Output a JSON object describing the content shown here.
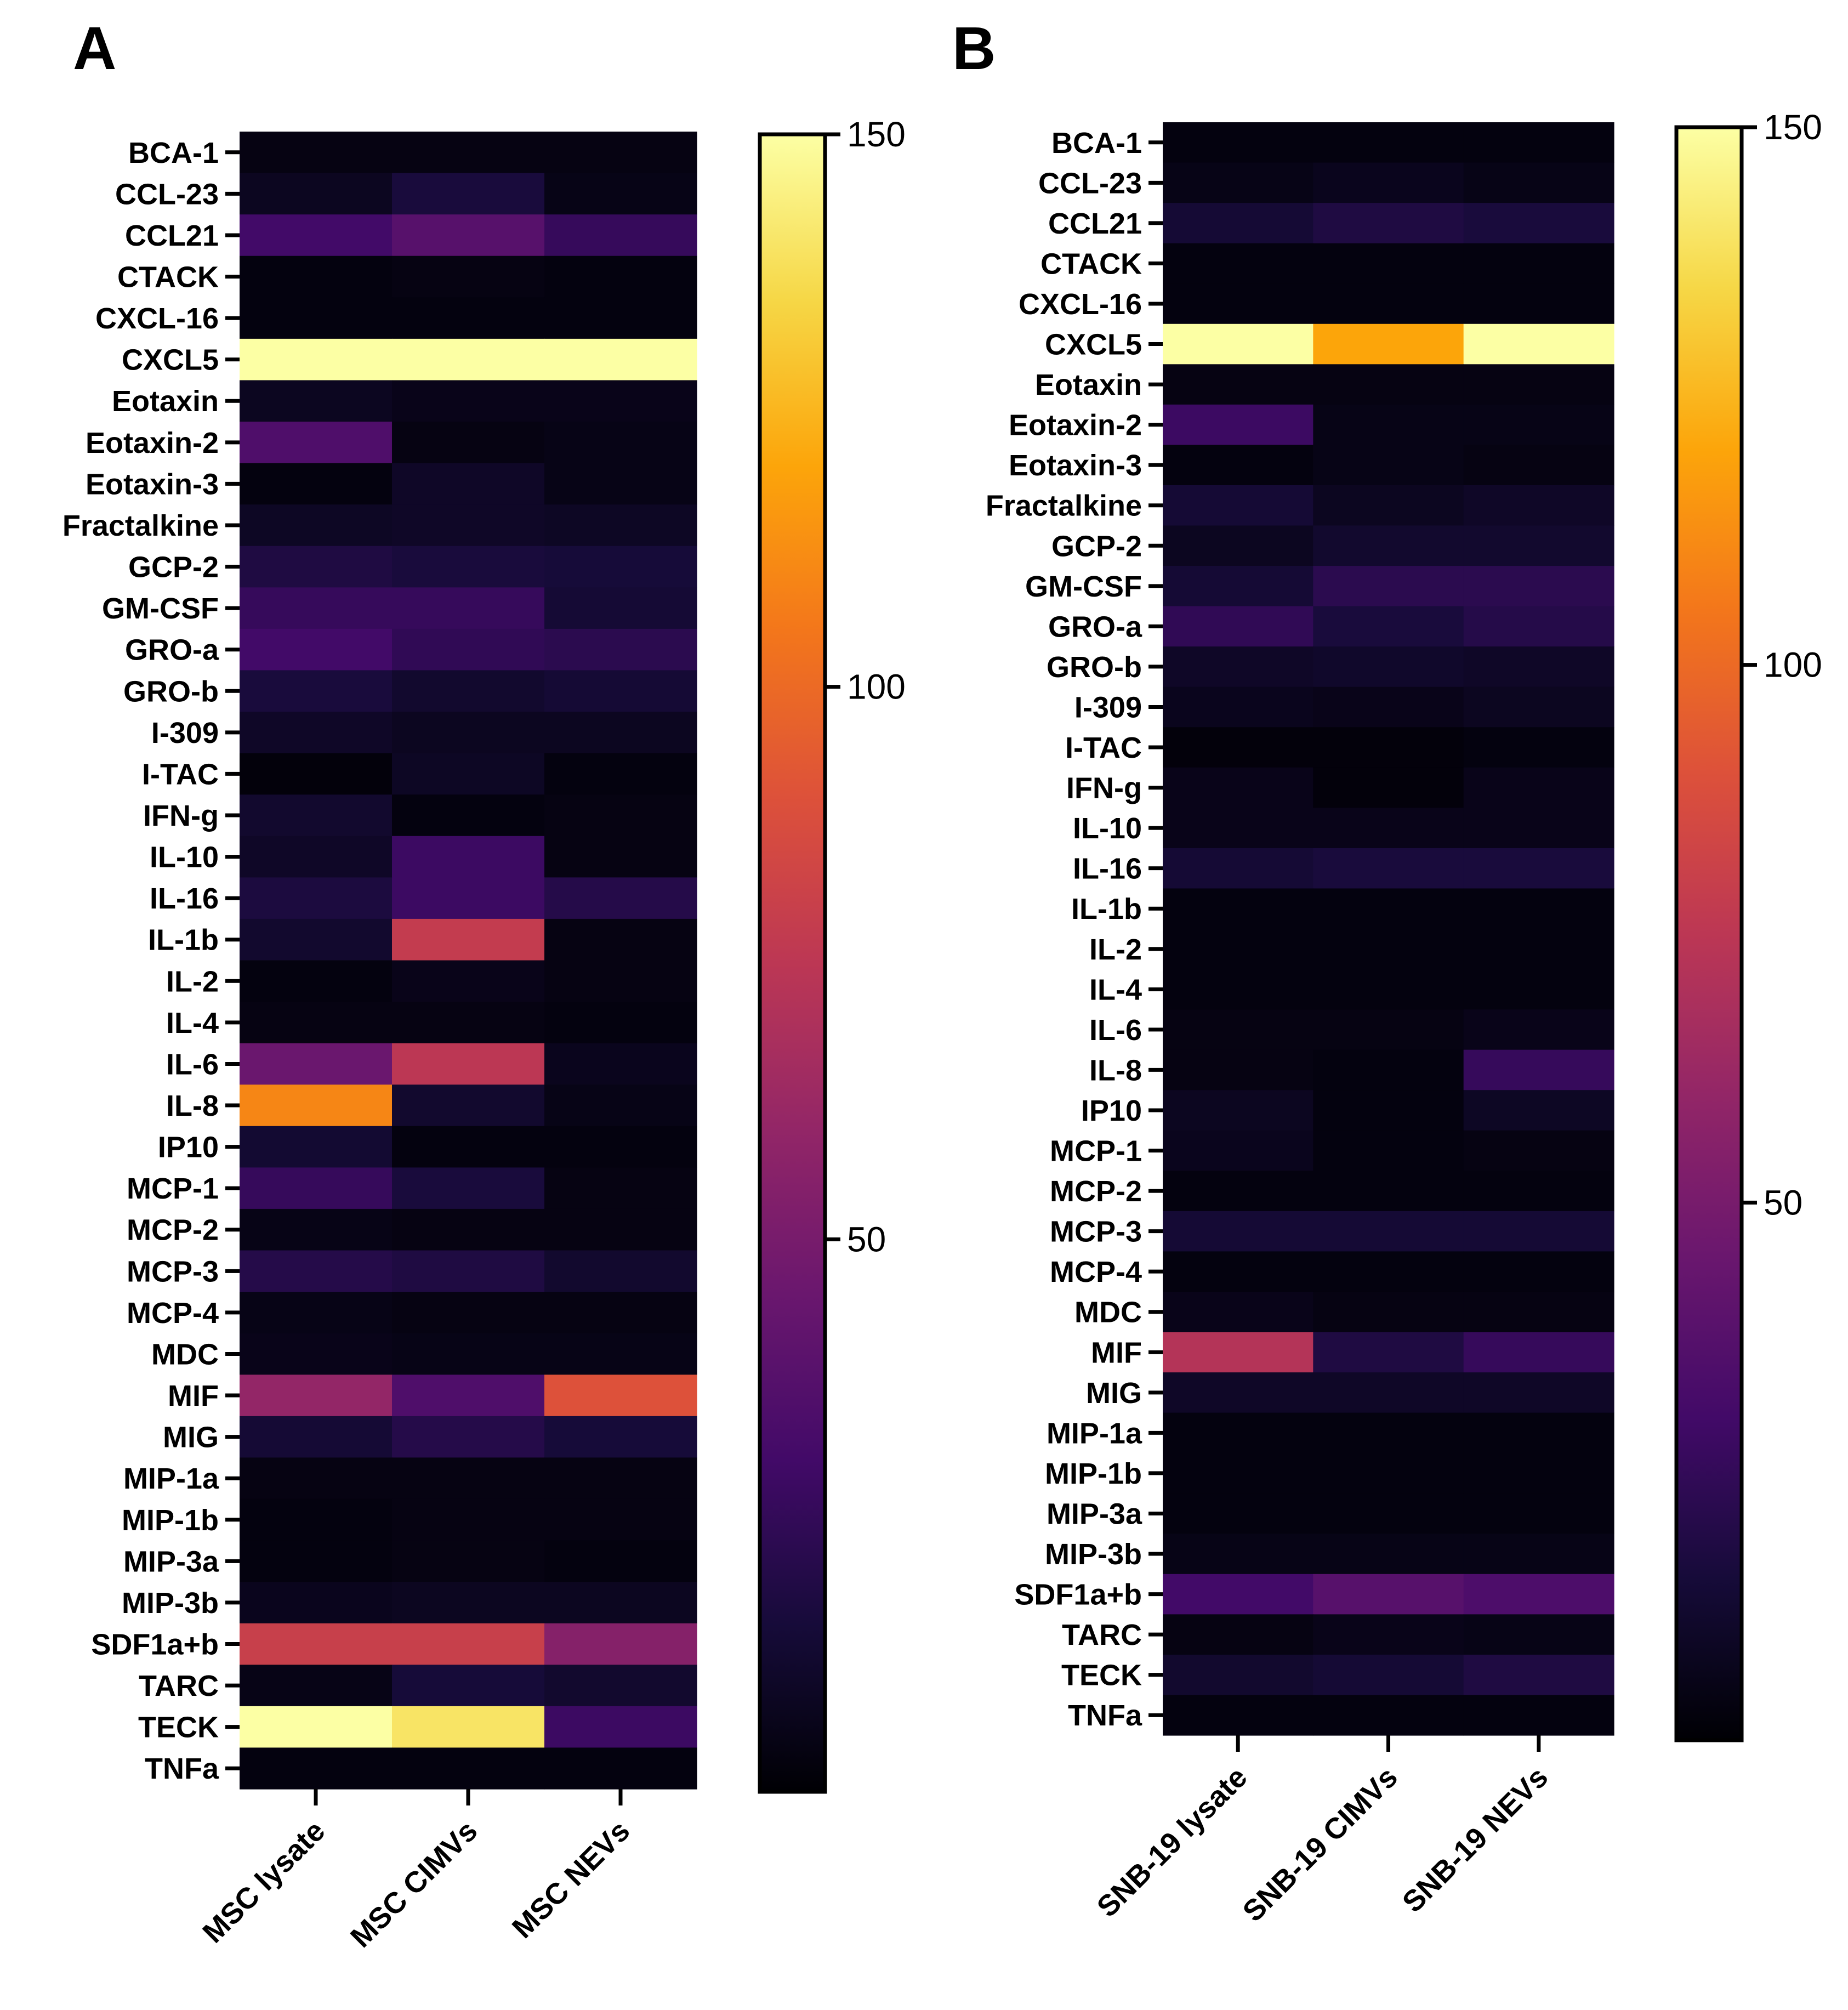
{
  "chart_data": [
    {
      "type": "heatmap",
      "panel_label": "A",
      "rows": [
        "BCA-1",
        "CCL-23",
        "CCL21",
        "CTACK",
        "CXCL-16",
        "CXCL5",
        "Eotaxin",
        "Eotaxin-2",
        "Eotaxin-3",
        "Fractalkine",
        "GCP-2",
        "GM-CSF",
        "GRO-a",
        "GRO-b",
        "I-309",
        "I-TAC",
        "IFN-g",
        "IL-10",
        "IL-16",
        "IL-1b",
        "IL-2",
        "IL-4",
        "IL-6",
        "IL-8",
        "IP10",
        "MCP-1",
        "MCP-2",
        "MCP-3",
        "MCP-4",
        "MDC",
        "MIF",
        "MIG",
        "MIP-1a",
        "MIP-1b",
        "MIP-3a",
        "MIP-3b",
        "SDF1a+b",
        "TARC",
        "TECK",
        "TNFa"
      ],
      "columns": [
        "MSC lysate",
        "MSC CIMVs",
        "MSC NEVs"
      ],
      "values": [
        [
          4,
          4,
          4
        ],
        [
          8,
          16,
          5
        ],
        [
          30,
          38,
          26
        ],
        [
          3,
          4,
          3
        ],
        [
          3,
          3,
          3
        ],
        [
          150,
          150,
          150
        ],
        [
          8,
          6,
          6
        ],
        [
          35,
          4,
          5
        ],
        [
          3,
          10,
          5
        ],
        [
          9,
          10,
          9
        ],
        [
          18,
          16,
          15
        ],
        [
          26,
          26,
          14
        ],
        [
          30,
          24,
          22
        ],
        [
          16,
          12,
          14
        ],
        [
          10,
          8,
          8
        ],
        [
          2,
          9,
          3
        ],
        [
          12,
          3,
          4
        ],
        [
          10,
          28,
          4
        ],
        [
          17,
          28,
          20
        ],
        [
          12,
          78,
          4
        ],
        [
          3,
          6,
          4
        ],
        [
          4,
          4,
          3
        ],
        [
          45,
          75,
          7
        ],
        [
          110,
          12,
          5
        ],
        [
          13,
          3,
          3
        ],
        [
          26,
          16,
          4
        ],
        [
          5,
          4,
          4
        ],
        [
          20,
          18,
          12
        ],
        [
          5,
          4,
          4
        ],
        [
          6,
          5,
          5
        ],
        [
          60,
          35,
          90
        ],
        [
          14,
          20,
          15
        ],
        [
          4,
          4,
          4
        ],
        [
          3,
          4,
          4
        ],
        [
          3,
          4,
          3
        ],
        [
          7,
          8,
          8
        ],
        [
          80,
          80,
          55
        ],
        [
          5,
          15,
          12
        ],
        [
          150,
          140,
          28
        ],
        [
          3,
          3,
          3
        ]
      ],
      "colorbar": {
        "vmin": 0,
        "vmax": 150,
        "ticks": [
          150,
          100,
          50
        ],
        "colormap": "inferno"
      },
      "title": "",
      "xlabel": "",
      "ylabel": ""
    },
    {
      "type": "heatmap",
      "panel_label": "B",
      "rows": [
        "BCA-1",
        "CCL-23",
        "CCL21",
        "CTACK",
        "CXCL-16",
        "CXCL5",
        "Eotaxin",
        "Eotaxin-2",
        "Eotaxin-3",
        "Fractalkine",
        "GCP-2",
        "GM-CSF",
        "GRO-a",
        "GRO-b",
        "I-309",
        "I-TAC",
        "IFN-g",
        "IL-10",
        "IL-16",
        "IL-1b",
        "IL-2",
        "IL-4",
        "IL-6",
        "IL-8",
        "IP10",
        "MCP-1",
        "MCP-2",
        "MCP-3",
        "MCP-4",
        "MDC",
        "MIF",
        "MIG",
        "MIP-1a",
        "MIP-1b",
        "MIP-3a",
        "MIP-3b",
        "SDF1a+b",
        "TARC",
        "TECK",
        "TNFa"
      ],
      "columns": [
        "SNB-19 lysate",
        "SNB-19 CIMVs",
        "SNB-19 NEVs"
      ],
      "values": [
        [
          3,
          3,
          3
        ],
        [
          5,
          7,
          5
        ],
        [
          14,
          18,
          16
        ],
        [
          3,
          3,
          3
        ],
        [
          3,
          3,
          3
        ],
        [
          150,
          120,
          150
        ],
        [
          4,
          4,
          4
        ],
        [
          28,
          5,
          5
        ],
        [
          3,
          5,
          4
        ],
        [
          14,
          8,
          10
        ],
        [
          8,
          12,
          12
        ],
        [
          14,
          22,
          22
        ],
        [
          24,
          16,
          20
        ],
        [
          10,
          11,
          10
        ],
        [
          7,
          6,
          8
        ],
        [
          2,
          2,
          3
        ],
        [
          6,
          2,
          6
        ],
        [
          6,
          6,
          6
        ],
        [
          14,
          16,
          16
        ],
        [
          3,
          3,
          3
        ],
        [
          3,
          3,
          3
        ],
        [
          3,
          3,
          3
        ],
        [
          4,
          4,
          6
        ],
        [
          4,
          3,
          26
        ],
        [
          8,
          3,
          9
        ],
        [
          7,
          3,
          4
        ],
        [
          3,
          3,
          3
        ],
        [
          14,
          14,
          14
        ],
        [
          3,
          3,
          3
        ],
        [
          6,
          4,
          4
        ],
        [
          72,
          18,
          26
        ],
        [
          10,
          10,
          10
        ],
        [
          3,
          3,
          3
        ],
        [
          3,
          3,
          3
        ],
        [
          3,
          3,
          3
        ],
        [
          5,
          5,
          5
        ],
        [
          30,
          38,
          34
        ],
        [
          4,
          6,
          5
        ],
        [
          12,
          14,
          18
        ],
        [
          3,
          3,
          3
        ]
      ],
      "colorbar": {
        "vmin": 0,
        "vmax": 150,
        "ticks": [
          150,
          100,
          50
        ],
        "colormap": "inferno"
      },
      "title": "",
      "xlabel": "",
      "ylabel": ""
    }
  ]
}
